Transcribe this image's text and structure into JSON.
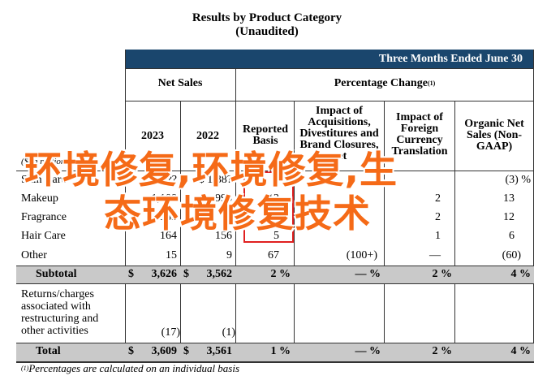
{
  "title": "Results by Product Category",
  "subtitle": "(Unaudited)",
  "banner": "Three Months Ended June 30",
  "headers": {
    "net_sales": "Net Sales",
    "pct_change": "Percentage Change",
    "pct_change_sup": "(1)",
    "y2023": "2023",
    "y2022": "2022",
    "reported": "Reported Basis",
    "impact_acq": "Impact of Acquisitions, Divestitures and Brand Closures, net",
    "impact_fx": "Impact of Foreign Currency Translation",
    "organic": "Organic Net Sales (Non-GAAP)"
  },
  "units_label": "($ in millions)",
  "rows": [
    {
      "label": "Skin Care",
      "y2023": "$ 1,??",
      "y2022": "$ 1,88?",
      "reported": "",
      "acq": "",
      "fx": "",
      "organic": "(3) %"
    },
    {
      "label": "Makeup",
      "y2023": "1,108",
      "y2022": "993",
      "reported": "12",
      "acq": "",
      "fx": "2",
      "organic": "13"
    },
    {
      "label": "Fragrance",
      "y2023": "545",
      "y2022": "",
      "reported": "",
      "acq": "",
      "fx": "2",
      "organic": "12"
    },
    {
      "label": "Hair Care",
      "y2023": "164",
      "y2022": "156",
      "reported": "5",
      "acq": "",
      "fx": "1",
      "organic": "6"
    },
    {
      "label": "Other",
      "y2023": "15",
      "y2022": "9",
      "reported": "67",
      "acq": "(100+)",
      "fx": "—",
      "organic": "(60)"
    }
  ],
  "subtotal": {
    "label": "Subtotal",
    "y2023": "3,626",
    "y2022": "3,562",
    "reported": "2 %",
    "acq": "— %",
    "fx": "2 %",
    "organic": "4 %"
  },
  "returns": {
    "label": "Returns/charges associated with restructuring and other activities",
    "y2023": "(17)",
    "y2022": "(1)"
  },
  "total": {
    "label": "Total",
    "y2023": "3,609",
    "y2022": "3,561",
    "reported": "1 %",
    "acq": "— %",
    "fx": "2 %",
    "organic": "4 %"
  },
  "dollar": "$",
  "footnote_mark": "(1)",
  "footnote": "Percentages are calculated on an individual basis",
  "watermark1": "环境修复,环境修复,生",
  "watermark2": "态环境修复技术",
  "colors": {
    "banner": "#1a466d",
    "shade": "#c9c9c9",
    "watermark": "#f56a17"
  }
}
